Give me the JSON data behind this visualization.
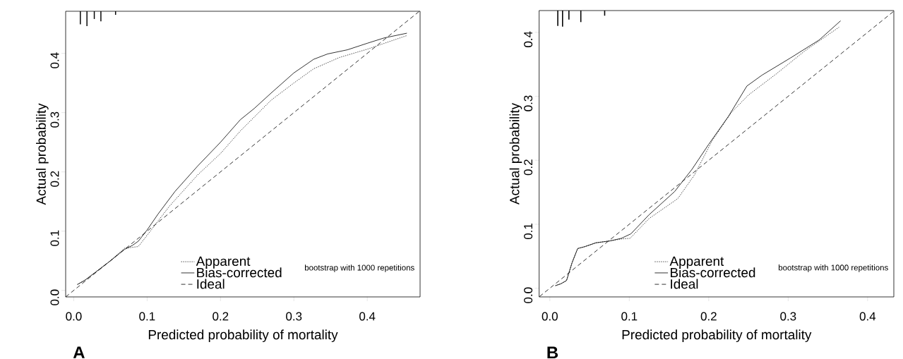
{
  "chart_data": [
    {
      "type": "line",
      "xlabel": "Predicted probability of mortality",
      "ylabel": "Actual probability",
      "annotations": [
        "bootstrap with 1000 repetitions",
        "A"
      ],
      "xlim": [
        -0.011,
        0.472
      ],
      "ylim": [
        -0.011,
        0.471
      ],
      "xticks": [
        {
          "value": 0,
          "label": "0.0"
        },
        0.1,
        0.2,
        0.3,
        0.4
      ],
      "yticks": [
        {
          "value": 0,
          "label": "0.0"
        },
        0.1,
        0.2,
        0.3,
        0.4
      ],
      "legend": "bottom",
      "marker": "none",
      "series": [
        {
          "name": "Apparent",
          "color": "#000000",
          "line_style": "dotted",
          "x": [
            0.005,
            0.015,
            0.03,
            0.05,
            0.069,
            0.088,
            0.1,
            0.131,
            0.169,
            0.2,
            0.227,
            0.269,
            0.3,
            0.327,
            0.362,
            0.4,
            0.454
          ],
          "values": [
            0.01,
            0.017,
            0.031,
            0.05,
            0.071,
            0.074,
            0.093,
            0.143,
            0.195,
            0.231,
            0.269,
            0.321,
            0.35,
            0.374,
            0.393,
            0.407,
            0.43
          ]
        },
        {
          "name": "Bias-corrected",
          "color": "#000000",
          "line_style": "solid",
          "x": [
            0.005,
            0.015,
            0.03,
            0.05,
            0.069,
            0.08,
            0.088,
            0.1,
            0.115,
            0.138,
            0.169,
            0.2,
            0.227,
            0.246,
            0.269,
            0.3,
            0.327,
            0.346,
            0.373,
            0.4,
            0.423,
            0.454
          ],
          "values": [
            0.01,
            0.017,
            0.031,
            0.05,
            0.069,
            0.076,
            0.083,
            0.102,
            0.129,
            0.167,
            0.21,
            0.25,
            0.288,
            0.307,
            0.333,
            0.367,
            0.39,
            0.399,
            0.406,
            0.417,
            0.426,
            0.434
          ]
        },
        {
          "name": "Ideal",
          "color": "#000000",
          "line_style": "dashed",
          "x": [
            -0.011,
            0.471
          ],
          "values": [
            -0.011,
            0.471
          ]
        },
        {
          "type": "bar",
          "color": "#000000",
          "x": [
            0.009,
            0.018,
            0.028,
            0.037,
            0.057
          ],
          "base": [
            0.471,
            0.471,
            0.471,
            0.471,
            0.471
          ],
          "values": [
            -0.022,
            -0.025,
            -0.013,
            -0.017,
            -0.006
          ]
        }
      ]
    },
    {
      "type": "line",
      "xlabel": "Predicted probability of mortality",
      "ylabel": "Actual probability",
      "annotations": [
        "bootstrap with 1000 repetitions",
        "B"
      ],
      "xlim": [
        -0.0135,
        0.433
      ],
      "ylim": [
        -0.0136,
        0.434
      ],
      "xticks": [
        {
          "value": 0,
          "label": "0.0"
        },
        0.1,
        0.2,
        0.3,
        0.4
      ],
      "yticks": [
        {
          "value": 0,
          "label": "0.0"
        },
        0.1,
        0.2,
        0.3,
        0.4
      ],
      "legend": "bottom",
      "marker": "none",
      "series": [
        {
          "name": "Apparent",
          "color": "#000000",
          "line_style": "dotted",
          "x": [
            0.007,
            0.014,
            0.021,
            0.028,
            0.035,
            0.044,
            0.058,
            0.076,
            0.09,
            0.101,
            0.125,
            0.161,
            0.182,
            0.204,
            0.228,
            0.25,
            0.285,
            0.321,
            0.364
          ],
          "values": [
            0.004,
            0.007,
            0.012,
            0.04,
            0.062,
            0.065,
            0.071,
            0.074,
            0.077,
            0.078,
            0.109,
            0.14,
            0.177,
            0.23,
            0.274,
            0.302,
            0.335,
            0.371,
            0.408
          ]
        },
        {
          "name": "Bias-corrected",
          "color": "#000000",
          "line_style": "solid",
          "x": [
            0.007,
            0.014,
            0.021,
            0.028,
            0.035,
            0.044,
            0.058,
            0.076,
            0.09,
            0.102,
            0.125,
            0.157,
            0.179,
            0.2,
            0.225,
            0.248,
            0.267,
            0.303,
            0.339,
            0.366
          ],
          "values": [
            0.004,
            0.007,
            0.012,
            0.04,
            0.062,
            0.065,
            0.071,
            0.074,
            0.078,
            0.085,
            0.115,
            0.151,
            0.186,
            0.225,
            0.269,
            0.316,
            0.333,
            0.36,
            0.388,
            0.418
          ]
        },
        {
          "name": "Ideal",
          "color": "#000000",
          "line_style": "dashed",
          "x": [
            -0.013,
            0.433
          ],
          "values": [
            -0.013,
            0.433
          ]
        },
        {
          "type": "bar",
          "color": "#000000",
          "x": [
            0.01,
            0.016,
            0.024,
            0.039,
            0.069
          ],
          "base": [
            0.434,
            0.434,
            0.434,
            0.434,
            0.434
          ],
          "values": [
            -0.024,
            -0.025,
            -0.014,
            -0.018,
            -0.008
          ]
        }
      ]
    }
  ]
}
